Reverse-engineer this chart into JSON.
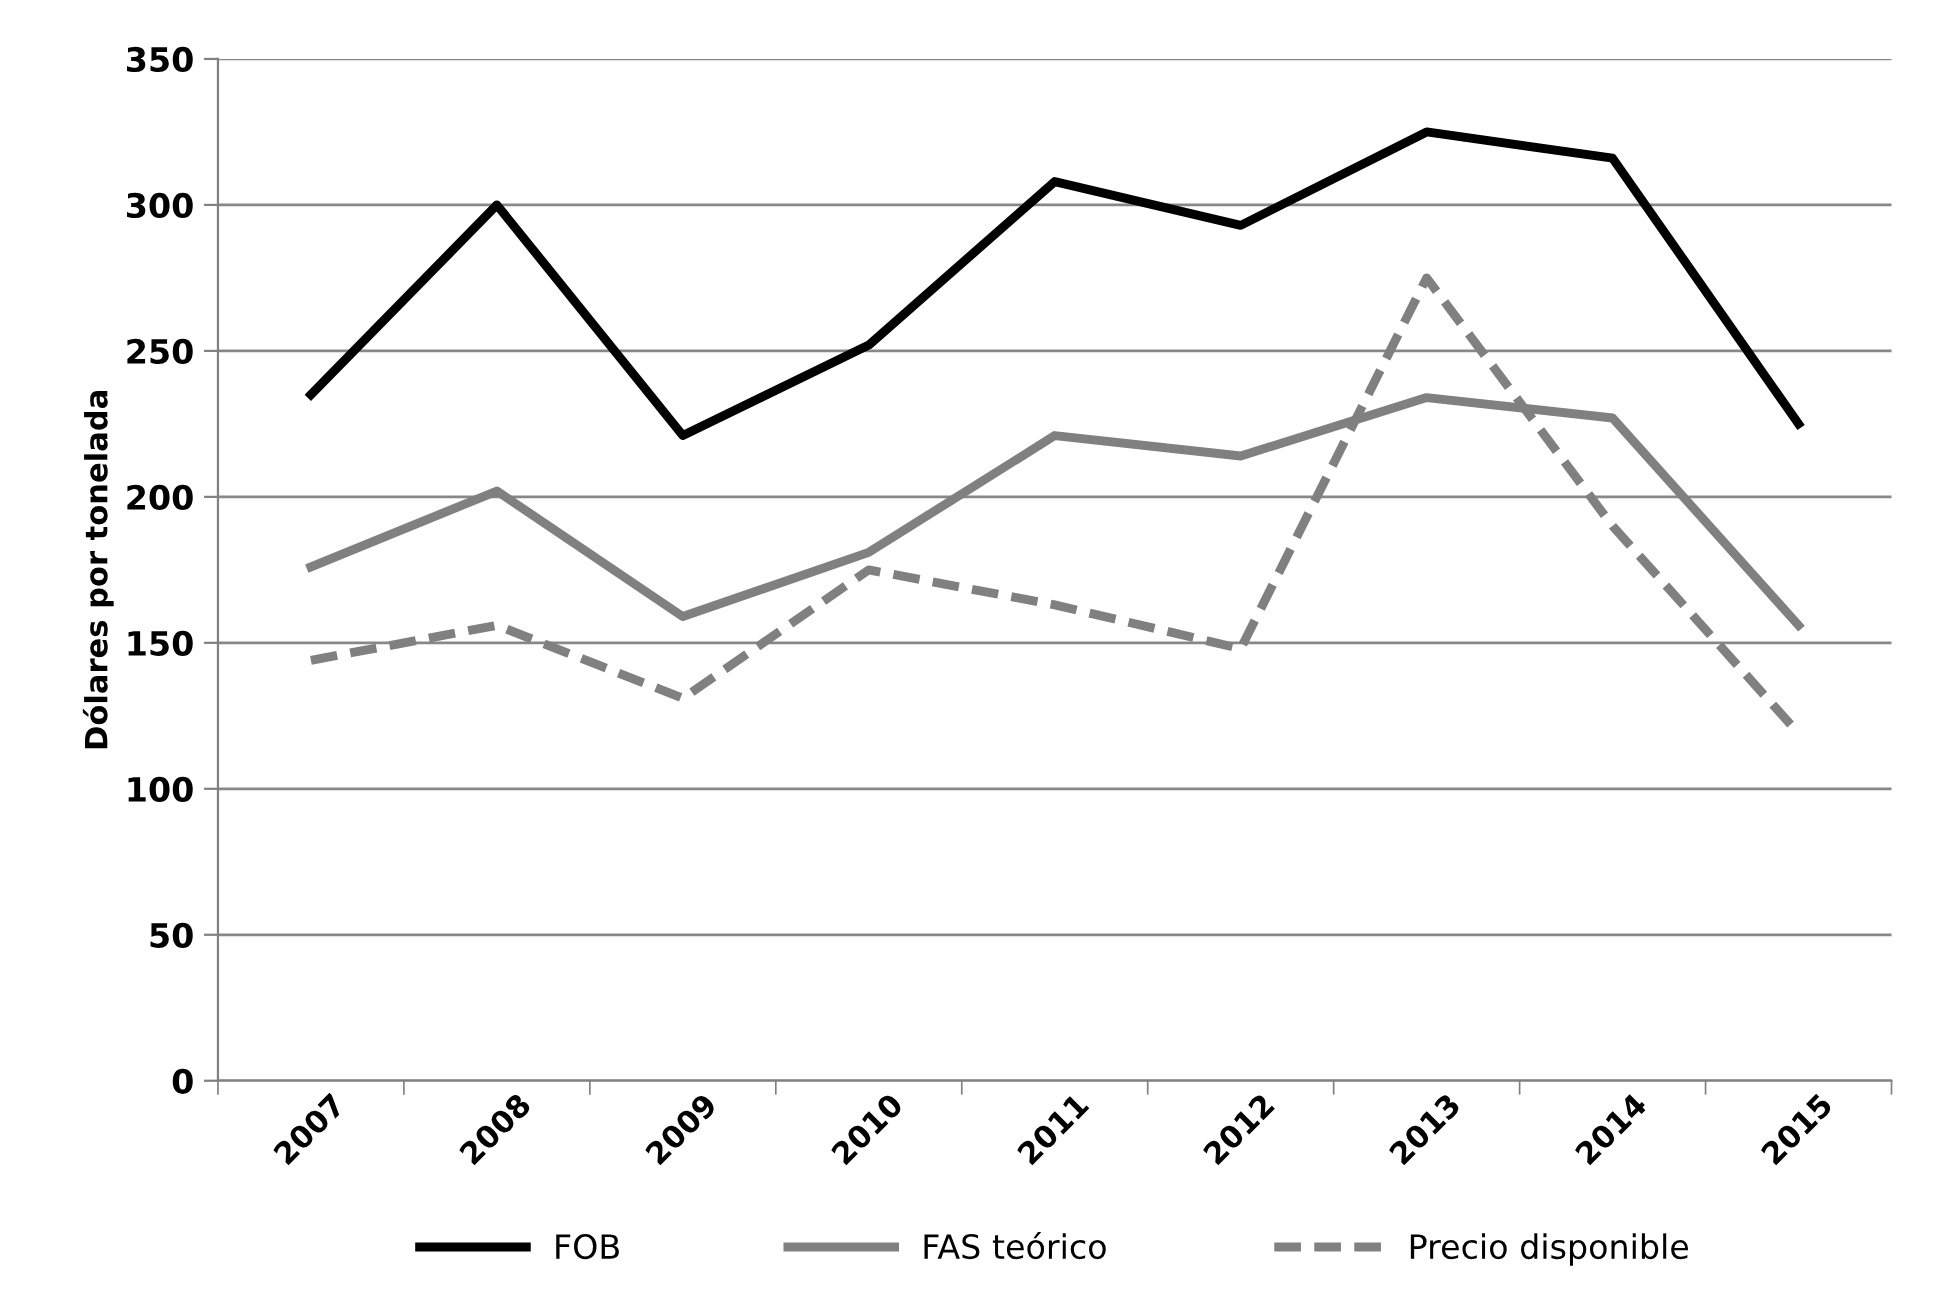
{
  "chart_data": {
    "type": "line",
    "ylabel": "Dólares por tonelada",
    "categories": [
      "2007",
      "2008",
      "2009",
      "2010",
      "2011",
      "2012",
      "2013",
      "2014",
      "2015"
    ],
    "series": [
      {
        "name": "FOB",
        "color": "#000000",
        "values": [
          235,
          300,
          221,
          252,
          308,
          293,
          325,
          316,
          225
        ]
      },
      {
        "name": "FAS teórico",
        "color": "#808080",
        "values": [
          176,
          202,
          159,
          181,
          221,
          214,
          234,
          227,
          156
        ]
      },
      {
        "name": "Precio disponible",
        "color": "#808080",
        "line_style": "dashed",
        "values": [
          144,
          156,
          131,
          175,
          163,
          148,
          275,
          190,
          119
        ]
      }
    ],
    "ylim": [
      0,
      350
    ],
    "yticks": [
      0,
      50,
      100,
      150,
      200,
      250,
      300,
      350
    ],
    "grid": "y",
    "legend": "bottom",
    "marker": "none"
  }
}
